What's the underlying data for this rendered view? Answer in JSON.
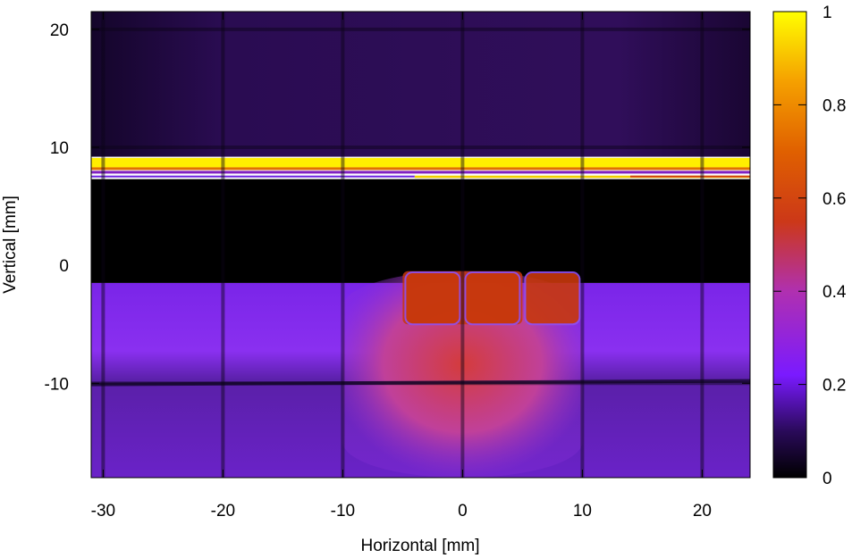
{
  "chart_data": {
    "type": "heatmap",
    "title": "",
    "xlabel": "Horizontal [mm]",
    "ylabel": "Vertical [mm]",
    "xlim": [
      -31,
      24
    ],
    "ylim": [
      -18,
      21.5
    ],
    "xticks": [
      -30,
      -20,
      -10,
      0,
      10,
      20
    ],
    "yticks": [
      -10,
      0,
      10,
      20
    ],
    "colorbar": {
      "range": [
        0,
        1
      ],
      "ticks": [
        0,
        0.2,
        0.4,
        0.6,
        0.8,
        1
      ],
      "colormap": "gnuplot-hot",
      "stops": [
        "#000000",
        "#2a0a5a",
        "#7a1aff",
        "#c030a0",
        "#d03010",
        "#e86000",
        "#f8a000",
        "#ffff00"
      ]
    },
    "regions": [
      {
        "name": "upper-background",
        "x": [
          -31,
          24
        ],
        "y": [
          9.2,
          21.5
        ],
        "value": 0.05
      },
      {
        "name": "bright-horizontal-stripe",
        "x": [
          -31,
          24
        ],
        "y": [
          8.3,
          9.1
        ],
        "value": 1.0
      },
      {
        "name": "thin-line",
        "x": [
          -4,
          24
        ],
        "y": [
          7.4,
          7.6
        ],
        "value": 0.9
      },
      {
        "name": "dark-gap",
        "x": [
          -31,
          24
        ],
        "y": [
          -1.5,
          7.3
        ],
        "value": 0.0
      },
      {
        "name": "lower-beam",
        "x": [
          -31,
          24
        ],
        "y": [
          -18,
          -1.5
        ],
        "value": 0.28
      },
      {
        "name": "central-spot",
        "x": [
          -10,
          10
        ],
        "y": [
          -18,
          -0.5
        ],
        "value": 0.5
      },
      {
        "name": "core",
        "x": [
          -5,
          5
        ],
        "y": [
          -5,
          -0.5
        ],
        "value": 0.6
      }
    ],
    "grid_lines_x": [
      -30,
      -20,
      -10,
      0,
      10,
      20
    ],
    "grid_lines_y": [
      -10,
      10,
      20
    ]
  }
}
